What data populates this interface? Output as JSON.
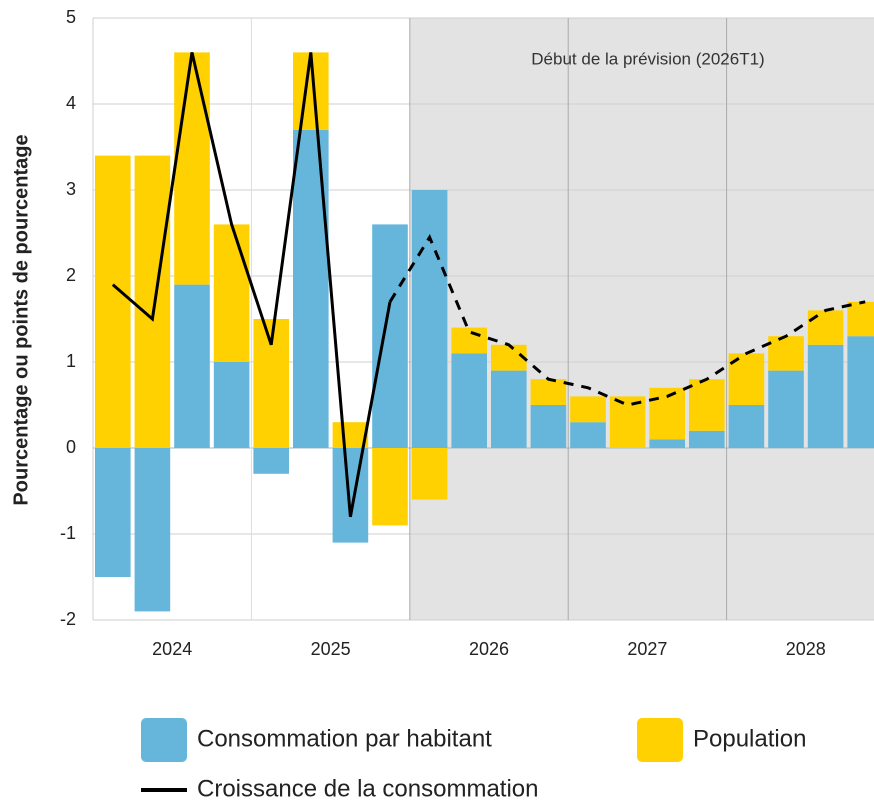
{
  "chart_data": {
    "type": "stacked-bar-line",
    "y_axis_label": "Pourcentage ou points de pourcentage",
    "annotation": "Début de la prévision (2026T1)",
    "categories": [
      null,
      null,
      "2024",
      null,
      null,
      null,
      "2025",
      null,
      null,
      null,
      "2026",
      null,
      null,
      null,
      "2027",
      null,
      null,
      null,
      "2028",
      null
    ],
    "shaded_from_index": 8,
    "series": [
      {
        "name": "Consommation par habitant",
        "type": "bar",
        "color": "#66b6dc",
        "values": [
          -1.5,
          -1.9,
          1.9,
          1.0,
          -0.3,
          3.7,
          -1.1,
          2.6,
          3.0,
          1.1,
          0.9,
          0.5,
          0.3,
          0.0,
          0.1,
          0.2,
          0.5,
          0.9,
          1.2,
          1.3
        ]
      },
      {
        "name": "Population",
        "type": "bar",
        "color": "#ffd100",
        "values": [
          3.4,
          3.4,
          2.7,
          1.6,
          1.5,
          0.9,
          0.3,
          -0.9,
          -0.6,
          0.3,
          0.3,
          0.3,
          0.3,
          0.6,
          0.6,
          0.6,
          0.6,
          0.4,
          0.4,
          0.4
        ]
      },
      {
        "name": "Croissance de la consommation",
        "type": "line",
        "color": "#000000",
        "values": [
          1.9,
          1.5,
          4.6,
          2.6,
          1.2,
          4.6,
          -0.8,
          1.7,
          2.45,
          1.35,
          1.2,
          0.8,
          0.7,
          0.5,
          0.6,
          0.8,
          1.1,
          1.3,
          1.6,
          1.7
        ]
      }
    ],
    "ylim": [
      -2,
      5
    ],
    "yticks": [
      -2,
      -1,
      0,
      1,
      2,
      3,
      4,
      5
    ],
    "grid": true
  }
}
